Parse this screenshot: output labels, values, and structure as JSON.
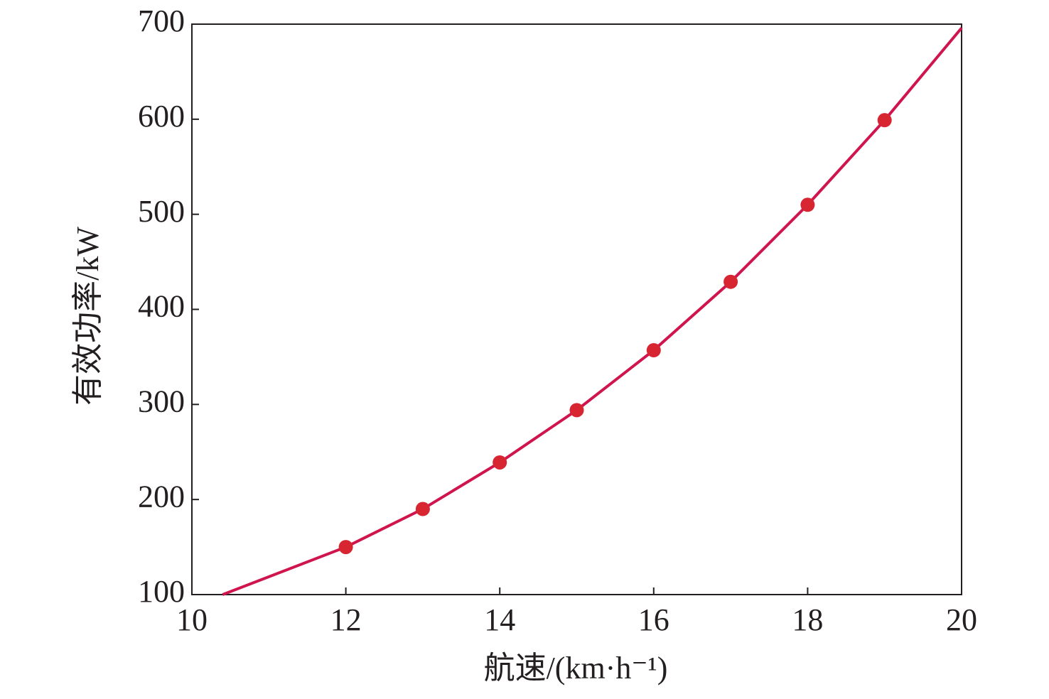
{
  "chart_data": {
    "type": "line",
    "x_label": "航速/(km·h⁻¹)",
    "y_label": "有效功率/kW",
    "xlim": [
      10,
      20
    ],
    "ylim": [
      100,
      700
    ],
    "xticks": [
      10,
      12,
      14,
      16,
      18,
      20
    ],
    "yticks": [
      100,
      200,
      300,
      400,
      500,
      600,
      700
    ],
    "grid": false,
    "series": [
      {
        "color": "#d0154e",
        "style": "line",
        "x": [
          10.4,
          12,
          13,
          14,
          15,
          16,
          17,
          18,
          19,
          20
        ],
        "values": [
          100,
          150,
          190,
          239,
          294,
          357,
          429,
          510,
          599,
          696
        ]
      },
      {
        "color": "#d72532",
        "style": "markers",
        "x": [
          12,
          13,
          14,
          15,
          16,
          17,
          18,
          19
        ],
        "values": [
          150,
          190,
          239,
          294,
          357,
          429,
          510,
          599
        ]
      }
    ]
  }
}
